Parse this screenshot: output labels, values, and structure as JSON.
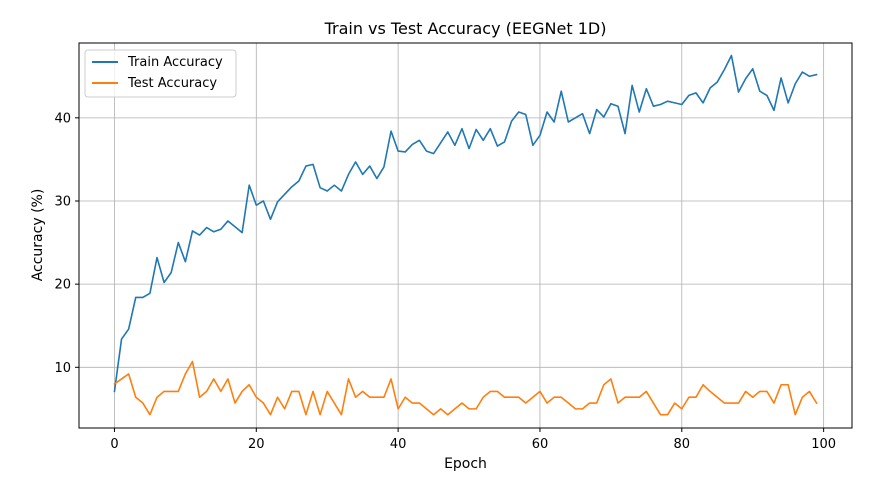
{
  "chart_data": {
    "type": "line",
    "title": "Train vs Test Accuracy (EEGNet 1D)",
    "xlabel": "Epoch",
    "ylabel": "Accuracy (%)",
    "xlim": [
      -5,
      104
    ],
    "ylim": [
      2.7,
      49.0
    ],
    "xticks": [
      0,
      20,
      40,
      60,
      80,
      100
    ],
    "yticks": [
      10,
      20,
      30,
      40
    ],
    "grid": true,
    "legend_position": "upper-left",
    "x": [
      0,
      1,
      2,
      3,
      4,
      5,
      6,
      7,
      8,
      9,
      10,
      11,
      12,
      13,
      14,
      15,
      16,
      17,
      18,
      19,
      20,
      21,
      22,
      23,
      24,
      25,
      26,
      27,
      28,
      29,
      30,
      31,
      32,
      33,
      34,
      35,
      36,
      37,
      38,
      39,
      40,
      41,
      42,
      43,
      44,
      45,
      46,
      47,
      48,
      49,
      50,
      51,
      52,
      53,
      54,
      55,
      56,
      57,
      58,
      59,
      60,
      61,
      62,
      63,
      64,
      65,
      66,
      67,
      68,
      69,
      70,
      71,
      72,
      73,
      74,
      75,
      76,
      77,
      78,
      79,
      80,
      81,
      82,
      83,
      84,
      85,
      86,
      87,
      88,
      89,
      90,
      91,
      92,
      93,
      94,
      95,
      96,
      97,
      98,
      99
    ],
    "series": [
      {
        "name": "Train Accuracy",
        "color": "#1f77b4",
        "values": [
          7.1,
          13.4,
          14.6,
          18.4,
          18.4,
          18.9,
          23.2,
          20.2,
          21.4,
          25.0,
          22.7,
          26.4,
          25.9,
          26.8,
          26.3,
          26.6,
          27.6,
          26.9,
          26.2,
          31.9,
          29.5,
          30.0,
          27.8,
          29.9,
          30.8,
          31.7,
          32.4,
          34.2,
          34.4,
          31.6,
          31.2,
          31.9,
          31.2,
          33.2,
          34.7,
          33.2,
          34.2,
          32.7,
          34.1,
          38.4,
          36.0,
          35.9,
          36.8,
          37.3,
          36.0,
          35.7,
          37.0,
          38.3,
          36.7,
          38.7,
          36.3,
          38.6,
          37.3,
          38.7,
          36.6,
          37.1,
          39.6,
          40.7,
          40.4,
          36.7,
          37.9,
          40.7,
          39.5,
          43.2,
          39.5,
          40.0,
          40.5,
          38.1,
          41.0,
          40.1,
          41.7,
          41.4,
          38.1,
          43.9,
          40.7,
          43.5,
          41.4,
          41.6,
          42.0,
          41.8,
          41.6,
          42.7,
          43.0,
          41.8,
          43.6,
          44.3,
          45.8,
          47.5,
          43.1,
          44.7,
          45.9,
          43.2,
          42.7,
          40.9,
          44.8,
          41.8,
          44.1,
          45.5,
          45.0,
          45.2
        ]
      },
      {
        "name": "Test Accuracy",
        "color": "#ff7f0e",
        "values": [
          8.0,
          8.6,
          9.2,
          6.4,
          5.7,
          4.3,
          6.4,
          7.1,
          7.1,
          7.1,
          9.2,
          10.7,
          6.4,
          7.1,
          8.6,
          7.1,
          8.6,
          5.7,
          7.1,
          7.9,
          6.4,
          5.7,
          4.3,
          6.4,
          5.0,
          7.1,
          7.1,
          4.3,
          7.1,
          4.3,
          7.1,
          5.7,
          4.3,
          8.6,
          6.4,
          7.1,
          6.4,
          6.4,
          6.4,
          8.6,
          5.0,
          6.4,
          5.7,
          5.7,
          5.0,
          4.3,
          5.0,
          4.3,
          5.0,
          5.7,
          5.0,
          5.0,
          6.4,
          7.1,
          7.1,
          6.4,
          6.4,
          6.4,
          5.7,
          6.4,
          7.1,
          5.7,
          6.4,
          6.4,
          5.7,
          5.0,
          5.0,
          5.7,
          5.7,
          7.9,
          8.6,
          5.7,
          6.4,
          6.4,
          6.4,
          7.1,
          5.7,
          4.3,
          4.3,
          5.7,
          5.0,
          6.4,
          6.4,
          7.9,
          7.1,
          6.4,
          5.7,
          5.7,
          5.7,
          7.1,
          6.4,
          7.1,
          7.1,
          5.7,
          7.9,
          7.9,
          4.3,
          6.4,
          7.1,
          5.7
        ]
      }
    ]
  }
}
